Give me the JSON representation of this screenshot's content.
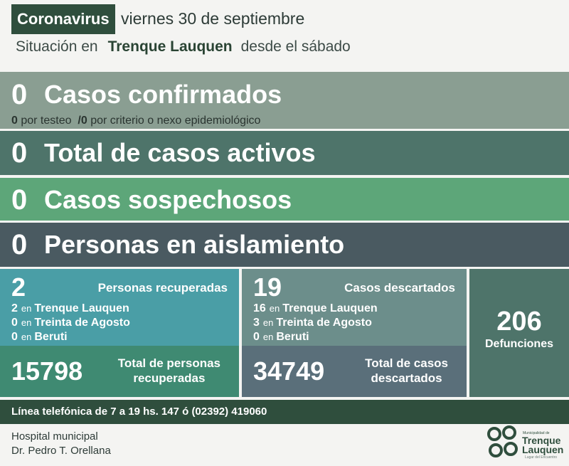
{
  "header": {
    "tag": "Coronavirus",
    "date": "viernes 30 de septiembre",
    "situation_prefix": "Situación en",
    "place": "Trenque Lauquen",
    "situation_suffix": "desde el sábado"
  },
  "confirmed": {
    "value": "0",
    "label": "Casos confirmados",
    "by_test_value": "0",
    "by_test_label": "por testeo",
    "by_criteria_value": "/0",
    "by_criteria_label": "por criterio o nexo epidemiológico"
  },
  "active": {
    "value": "0",
    "label": "Total de casos activos"
  },
  "suspected": {
    "value": "0",
    "label": "Casos sospechosos"
  },
  "isolation": {
    "value": "0",
    "label": "Personas en aislamiento"
  },
  "recovered": {
    "value": "2",
    "title": "Personas recuperadas",
    "en": "en",
    "rows": [
      {
        "value": "2",
        "place": "Trenque Lauquen"
      },
      {
        "value": "0",
        "place": "Treinta de Agosto"
      },
      {
        "value": "0",
        "place": "Beruti"
      }
    ],
    "total_value": "15798",
    "total_label_1": "Total de personas",
    "total_label_2": "recuperadas"
  },
  "discarded": {
    "value": "19",
    "title": "Casos descartados",
    "en": "en",
    "rows": [
      {
        "value": "16",
        "place": "Trenque Lauquen"
      },
      {
        "value": "3",
        "place": "Treinta de Agosto"
      },
      {
        "value": "0",
        "place": "Beruti"
      }
    ],
    "total_value": "34749",
    "total_label_1": "Total de casos",
    "total_label_2": "descartados"
  },
  "deaths": {
    "value": "206",
    "label": "Defunciones"
  },
  "phone_line": "Línea telefónica de 7 a 19 hs. 147 ó (02392) 419060",
  "hospital": {
    "line1": "Hospital municipal",
    "line2": "Dr. Pedro T. Orellana"
  },
  "logo": {
    "small": "Municipalidad de",
    "name1": "Trenque",
    "name2": "Lauquen",
    "tagline": "Lugar del Encuentro"
  },
  "colors": {
    "dark_green": "#2f4e3d",
    "confirmed": "#8a9e92",
    "active": "#4e746a",
    "suspected": "#5da679",
    "isolation": "#4a5a61",
    "recovered": "#4a9ea6",
    "discarded": "#6c8e8b"
  }
}
